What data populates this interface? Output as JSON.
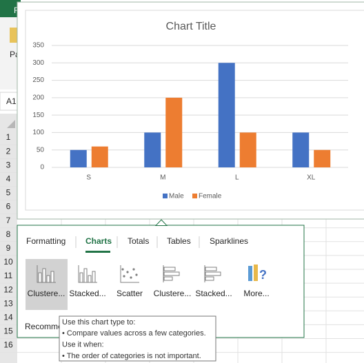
{
  "app": {
    "file_tab": "F",
    "paste": "Pa",
    "name_box": "A1"
  },
  "row_headers": [
    "1",
    "2",
    "3",
    "4",
    "5",
    "6",
    "7",
    "8",
    "9",
    "10",
    "11",
    "12",
    "13",
    "14",
    "15",
    "16"
  ],
  "chart_data": {
    "type": "bar",
    "title": "Chart Title",
    "categories": [
      "S",
      "M",
      "L",
      "XL"
    ],
    "series": [
      {
        "name": "Male",
        "color": "#4472c4",
        "values": [
          50,
          100,
          300,
          100
        ]
      },
      {
        "name": "Female",
        "color": "#ed7d31",
        "values": [
          60,
          200,
          100,
          50
        ]
      }
    ],
    "ylim": [
      0,
      350
    ],
    "yticks": [
      0,
      50,
      100,
      150,
      200,
      250,
      300,
      350
    ],
    "grid": true,
    "legend": "bottom"
  },
  "quick_analysis": {
    "tabs": [
      "Formatting",
      "Charts",
      "Totals",
      "Tables",
      "Sparklines"
    ],
    "buttons": [
      "Clustere...",
      "Stacked...",
      "Scatter",
      "Clustere...",
      "Stacked...",
      "More..."
    ],
    "footer": "Recomme",
    "tooltip": [
      "Use this chart type to:",
      "• Compare values across a few categories.",
      "Use it when:",
      "• The order of categories is not important."
    ]
  }
}
